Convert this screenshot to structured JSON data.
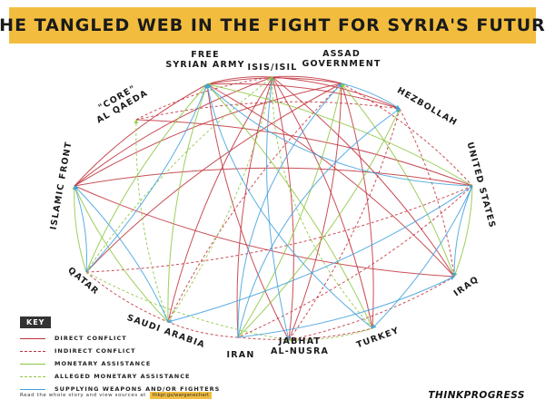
{
  "title": "THE TANGLED WEB IN THE FIGHT FOR SYRIA'S FUTURE",
  "colors": {
    "banner": "#f2bd3f",
    "direct_conflict": "#c0303a",
    "indirect_conflict": "#c0303a",
    "monetary_assistance": "#8cc63f",
    "alleged_monetary_assistance": "#8cc63f",
    "supplying_weapons": "#3fa0dd"
  },
  "nodes": [
    {
      "id": "fsa",
      "label": [
        "FREE",
        "SYRIAN ARMY"
      ]
    },
    {
      "id": "isis",
      "label": [
        "ISIS/ISIL"
      ]
    },
    {
      "id": "assad",
      "label": [
        "ASSAD",
        "GOVERNMENT"
      ]
    },
    {
      "id": "hezbollah",
      "label": [
        "HEZBOLLAH"
      ]
    },
    {
      "id": "us",
      "label": [
        "UNITED STATES"
      ]
    },
    {
      "id": "iraq",
      "label": [
        "IRAQ"
      ]
    },
    {
      "id": "turkey",
      "label": [
        "TURKEY"
      ]
    },
    {
      "id": "nusra",
      "label": [
        "JABHAT",
        "AL-NUSRA"
      ]
    },
    {
      "id": "iran",
      "label": [
        "IRAN"
      ]
    },
    {
      "id": "saudi",
      "label": [
        "SAUDI ARABIA"
      ]
    },
    {
      "id": "qatar",
      "label": [
        "QATAR"
      ]
    },
    {
      "id": "islamicfront",
      "label": [
        "ISLAMIC FRONT"
      ]
    },
    {
      "id": "alqaeda",
      "label": [
        "\"CORE\"",
        "AL QAEDA"
      ]
    }
  ],
  "edges": [
    {
      "from": "fsa",
      "to": "isis",
      "type": "direct"
    },
    {
      "from": "fsa",
      "to": "assad",
      "type": "direct"
    },
    {
      "from": "fsa",
      "to": "nusra",
      "type": "direct"
    },
    {
      "from": "fsa",
      "to": "islamicfront",
      "type": "direct"
    },
    {
      "from": "fsa",
      "to": "iraq",
      "type": "direct"
    },
    {
      "from": "fsa",
      "to": "hezbollah",
      "type": "direct"
    },
    {
      "from": "isis",
      "to": "assad",
      "type": "direct"
    },
    {
      "from": "isis",
      "to": "iraq",
      "type": "direct"
    },
    {
      "from": "isis",
      "to": "nusra",
      "type": "direct"
    },
    {
      "from": "isis",
      "to": "islamicfront",
      "type": "direct"
    },
    {
      "from": "isis",
      "to": "hezbollah",
      "type": "direct"
    },
    {
      "from": "isis",
      "to": "iran",
      "type": "direct"
    },
    {
      "from": "isis",
      "to": "saudi",
      "type": "direct"
    },
    {
      "from": "isis",
      "to": "turkey",
      "type": "direct"
    },
    {
      "from": "assad",
      "to": "islamicfront",
      "type": "direct"
    },
    {
      "from": "assad",
      "to": "nusra",
      "type": "direct"
    },
    {
      "from": "assad",
      "to": "qatar",
      "type": "direct"
    },
    {
      "from": "assad",
      "to": "turkey",
      "type": "direct"
    },
    {
      "from": "islamicfront",
      "to": "us",
      "type": "direct"
    },
    {
      "from": "islamicfront",
      "to": "iraq",
      "type": "direct"
    },
    {
      "from": "alqaeda",
      "to": "us",
      "type": "direct"
    },
    {
      "from": "alqaeda",
      "to": "isis",
      "type": "indirect"
    },
    {
      "from": "alqaeda",
      "to": "hezbollah",
      "type": "indirect"
    },
    {
      "from": "assad",
      "to": "us",
      "type": "indirect"
    },
    {
      "from": "assad",
      "to": "saudi",
      "type": "indirect"
    },
    {
      "from": "us",
      "to": "iran",
      "type": "indirect"
    },
    {
      "from": "us",
      "to": "qatar",
      "type": "indirect"
    },
    {
      "from": "hezbollah",
      "to": "nusra",
      "type": "indirect"
    },
    {
      "from": "hezbollah",
      "to": "iraq",
      "type": "indirect"
    },
    {
      "from": "iran",
      "to": "saudi",
      "type": "indirect"
    },
    {
      "from": "iran",
      "to": "turkey",
      "type": "indirect"
    },
    {
      "from": "qatar",
      "to": "saudi",
      "type": "indirect"
    },
    {
      "from": "iraq",
      "to": "nusra",
      "type": "indirect"
    },
    {
      "from": "iran",
      "to": "assad",
      "type": "monetary"
    },
    {
      "from": "iran",
      "to": "hezbollah",
      "type": "monetary"
    },
    {
      "from": "saudi",
      "to": "fsa",
      "type": "monetary"
    },
    {
      "from": "saudi",
      "to": "islamicfront",
      "type": "monetary"
    },
    {
      "from": "qatar",
      "to": "fsa",
      "type": "monetary"
    },
    {
      "from": "qatar",
      "to": "islamicfront",
      "type": "monetary"
    },
    {
      "from": "turkey",
      "to": "fsa",
      "type": "monetary"
    },
    {
      "from": "us",
      "to": "iraq",
      "type": "monetary"
    },
    {
      "from": "us",
      "to": "fsa",
      "type": "monetary"
    },
    {
      "from": "iraq",
      "to": "assad",
      "type": "monetary"
    },
    {
      "from": "saudi",
      "to": "isis",
      "type": "alleged"
    },
    {
      "from": "qatar",
      "to": "isis",
      "type": "alleged"
    },
    {
      "from": "qatar",
      "to": "nusra",
      "type": "alleged"
    },
    {
      "from": "turkey",
      "to": "nusra",
      "type": "alleged"
    },
    {
      "from": "turkey",
      "to": "isis",
      "type": "alleged"
    },
    {
      "from": "saudi",
      "to": "alqaeda",
      "type": "alleged"
    },
    {
      "from": "us",
      "to": "fsa",
      "type": "weapons"
    },
    {
      "from": "us",
      "to": "iraq",
      "type": "weapons"
    },
    {
      "from": "us",
      "to": "turkey",
      "type": "weapons"
    },
    {
      "from": "iran",
      "to": "assad",
      "type": "weapons"
    },
    {
      "from": "iran",
      "to": "hezbollah",
      "type": "weapons"
    },
    {
      "from": "iran",
      "to": "iraq",
      "type": "weapons"
    },
    {
      "from": "saudi",
      "to": "islamicfront",
      "type": "weapons"
    },
    {
      "from": "qatar",
      "to": "islamicfront",
      "type": "weapons"
    },
    {
      "from": "turkey",
      "to": "fsa",
      "type": "weapons"
    },
    {
      "from": "isis",
      "to": "nusra",
      "type": "weapons"
    },
    {
      "from": "assad",
      "to": "hezbollah",
      "type": "weapons"
    },
    {
      "from": "us",
      "to": "saudi",
      "type": "weapons"
    },
    {
      "from": "qatar",
      "to": "fsa",
      "type": "weapons"
    }
  ],
  "key": {
    "title": "KEY",
    "items": [
      {
        "type": "direct",
        "label": "DIRECT CONFLICT"
      },
      {
        "type": "indirect",
        "label": "INDIRECT CONFLICT"
      },
      {
        "type": "monetary",
        "label": "MONETARY ASSISTANCE"
      },
      {
        "type": "alleged",
        "label": "ALLEGED MONETARY ASSISTANCE"
      },
      {
        "type": "weapons",
        "label": "SUPPLYING WEAPONS AND/OR FIGHTERS"
      }
    ]
  },
  "footer": {
    "text": "Read the whole story and view sources at",
    "link": "thkpr.gs/warganechart"
  },
  "brand": "THINKPROGRESS"
}
